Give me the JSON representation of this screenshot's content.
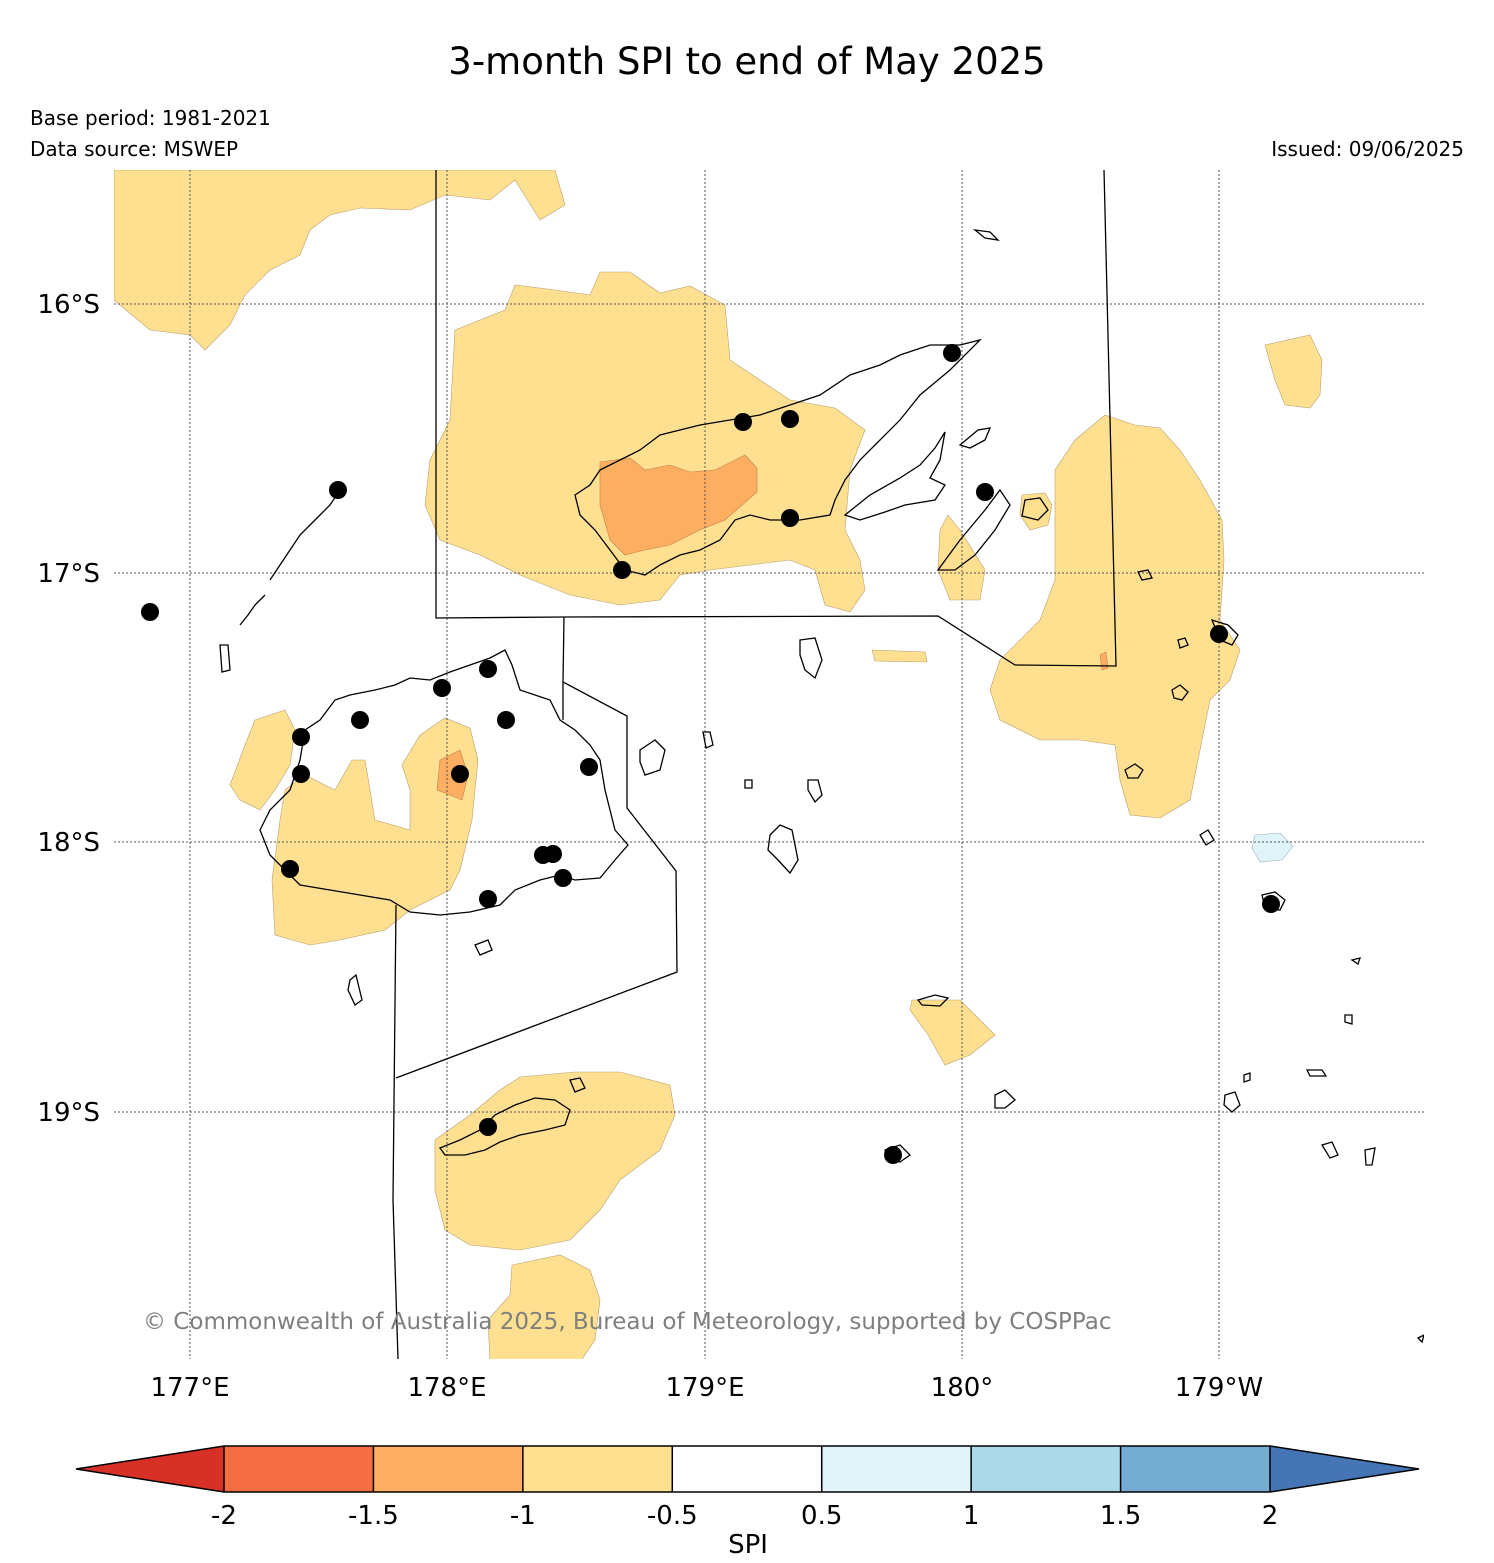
{
  "title": "3-month SPI to end of May 2025",
  "base_period": "Base period: 1981-2021",
  "data_source": "Data source: MSWEP",
  "issued": "Issued: 09/06/2025",
  "copyright": "© Commonwealth of Australia 2025, Bureau of Meteorology, supported by COSPPac",
  "lat_labels": [
    "16°S",
    "17°S",
    "18°S",
    "19°S"
  ],
  "lon_labels": [
    "177°E",
    "178°E",
    "179°E",
    "180°",
    "179°W"
  ],
  "colorbar": {
    "label": "SPI",
    "ticks": [
      "-2",
      "-1.5",
      "-1",
      "-0.5",
      "0.5",
      "1",
      "1.5",
      "2"
    ],
    "colors": [
      "#d73027",
      "#f46d43",
      "#fdae61",
      "#fee090",
      "#ffffff",
      "#e0f3f8",
      "#abd9e9",
      "#74add1",
      "#4575b4"
    ]
  }
}
